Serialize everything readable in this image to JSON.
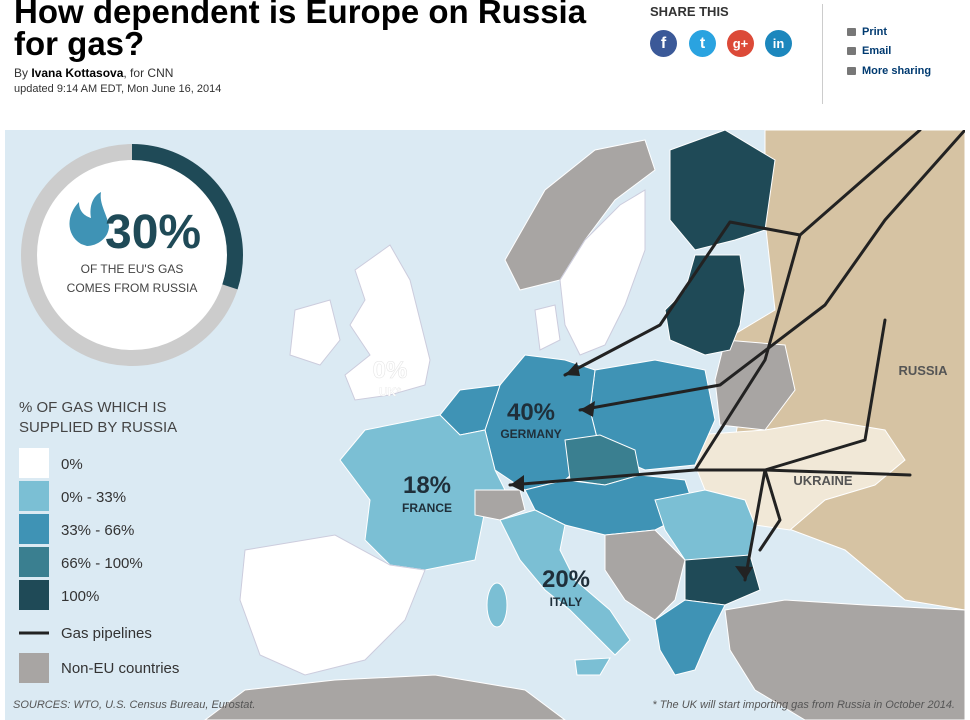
{
  "article": {
    "headline": "How dependent is Europe on Russia for gas?",
    "by_prefix": "By ",
    "author": "Ivana Kottasova",
    "by_suffix": ", for CNN",
    "updated": "updated 9:14 AM EDT, Mon June 16, 2014"
  },
  "share": {
    "title": "SHARE THIS",
    "facebook_glyph": "f",
    "twitter_glyph": "t",
    "google_glyph": "g+",
    "linkedin_glyph": "in",
    "links": [
      "Print",
      "Email",
      "More sharing"
    ]
  },
  "infographic": {
    "ring": {
      "percent": "30%",
      "fraction": 0.3,
      "line1": "OF THE EU'S GAS",
      "line2": "COMES FROM RUSSIA"
    },
    "legend": {
      "title1": "% OF GAS WHICH IS",
      "title2": "SUPPLIED BY RUSSIA",
      "items": [
        {
          "label": "0%",
          "color": "#ffffff"
        },
        {
          "label": "0% - 33%",
          "color": "#7bbfd4"
        },
        {
          "label": "33% - 66%",
          "color": "#3f93b5"
        },
        {
          "label": "66% - 100%",
          "color": "#3a7f90"
        },
        {
          "label": "100%",
          "color": "#1f4a57"
        }
      ],
      "pipelines": "Gas pipelines",
      "non_eu": "Non-EU countries"
    },
    "labels": {
      "uk_value": "0%",
      "uk_name": "UK*",
      "germany_value": "40%",
      "germany_name": "GERMANY",
      "france_value": "18%",
      "france_name": "FRANCE",
      "italy_value": "20%",
      "italy_name": "ITALY",
      "russia": "RUSSIA",
      "ukraine": "UKRAINE"
    },
    "sources": "SOURCES: WTO, U.S. Census Bureau, Eurostat.",
    "footnote": "* The UK will start importing gas from Russia in October 2014.",
    "colors": {
      "sea": "#dbeaf3",
      "russia": "#d6c3a3",
      "ukraine": "#f1e8d7",
      "non_eu": "#a8a5a3",
      "ring_track": "#cccccc",
      "ring_fill": "#1f4a57"
    }
  }
}
